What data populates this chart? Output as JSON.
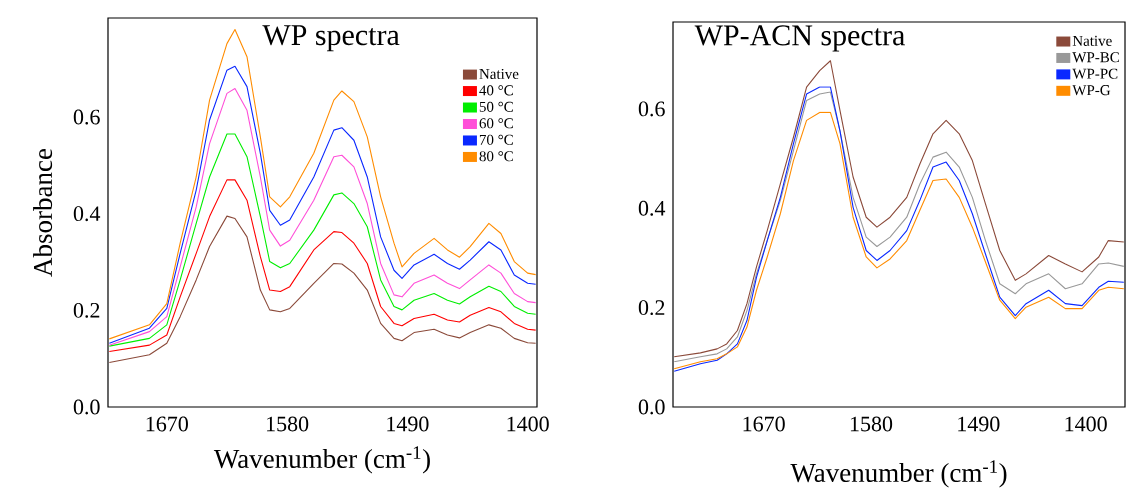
{
  "chart_data": [
    {
      "type": "line",
      "title": "WP spectra",
      "xlabel": "Wavenumber (cm$^{-1}$)",
      "ylabel": "Absorbance",
      "x": [
        1713,
        1683,
        1670,
        1660,
        1648,
        1638,
        1625,
        1619,
        1610,
        1600,
        1593,
        1585,
        1578,
        1560,
        1545,
        1539,
        1530,
        1520,
        1510,
        1500,
        1494,
        1485,
        1470,
        1460,
        1451,
        1443,
        1429,
        1420,
        1410,
        1400,
        1394
      ],
      "series": [
        {
          "name": "Native",
          "color": "#8b4a3a",
          "values": [
            0.092,
            0.108,
            0.132,
            0.187,
            0.263,
            0.332,
            0.395,
            0.39,
            0.352,
            0.242,
            0.201,
            0.197,
            0.204,
            0.256,
            0.297,
            0.296,
            0.277,
            0.242,
            0.173,
            0.142,
            0.137,
            0.154,
            0.161,
            0.149,
            0.143,
            0.154,
            0.17,
            0.163,
            0.142,
            0.133,
            0.132
          ]
        },
        {
          "name": "40 °C",
          "color": "#ff0000",
          "values": [
            0.115,
            0.128,
            0.149,
            0.228,
            0.318,
            0.394,
            0.47,
            0.47,
            0.428,
            0.311,
            0.242,
            0.239,
            0.249,
            0.325,
            0.363,
            0.361,
            0.339,
            0.297,
            0.208,
            0.173,
            0.168,
            0.183,
            0.192,
            0.18,
            0.176,
            0.19,
            0.206,
            0.197,
            0.173,
            0.161,
            0.159
          ]
        },
        {
          "name": "50 °C",
          "color": "#00ee00",
          "values": [
            0.126,
            0.142,
            0.17,
            0.263,
            0.38,
            0.476,
            0.565,
            0.565,
            0.518,
            0.394,
            0.301,
            0.288,
            0.297,
            0.366,
            0.439,
            0.443,
            0.421,
            0.373,
            0.263,
            0.208,
            0.201,
            0.221,
            0.235,
            0.221,
            0.213,
            0.228,
            0.25,
            0.239,
            0.208,
            0.194,
            0.192
          ]
        },
        {
          "name": "60 °C",
          "color": "#ff4fd8",
          "values": [
            0.128,
            0.156,
            0.187,
            0.29,
            0.414,
            0.545,
            0.649,
            0.659,
            0.614,
            0.476,
            0.366,
            0.333,
            0.345,
            0.428,
            0.518,
            0.521,
            0.497,
            0.421,
            0.297,
            0.232,
            0.228,
            0.256,
            0.273,
            0.256,
            0.245,
            0.263,
            0.294,
            0.277,
            0.235,
            0.218,
            0.216
          ]
        },
        {
          "name": "70 °C",
          "color": "#0a28ff",
          "values": [
            0.132,
            0.163,
            0.204,
            0.318,
            0.449,
            0.594,
            0.697,
            0.705,
            0.663,
            0.525,
            0.407,
            0.376,
            0.387,
            0.476,
            0.573,
            0.578,
            0.552,
            0.476,
            0.352,
            0.283,
            0.266,
            0.294,
            0.316,
            0.297,
            0.285,
            0.304,
            0.342,
            0.325,
            0.273,
            0.256,
            0.254
          ]
        },
        {
          "name": "80 °C",
          "color": "#ff8c00",
          "values": [
            0.141,
            0.17,
            0.214,
            0.339,
            0.476,
            0.635,
            0.752,
            0.781,
            0.725,
            0.559,
            0.435,
            0.414,
            0.435,
            0.525,
            0.635,
            0.654,
            0.632,
            0.559,
            0.435,
            0.339,
            0.29,
            0.318,
            0.349,
            0.325,
            0.31,
            0.332,
            0.38,
            0.359,
            0.301,
            0.277,
            0.274
          ]
        }
      ],
      "xlim": [
        1714,
        1393
      ],
      "ylim": [
        0,
        0.805
      ],
      "xticks": [
        1670,
        1580,
        1490,
        1400
      ],
      "yticks": [
        {
          "value": 0,
          "label": "0.0"
        },
        {
          "value": 0.2,
          "label": "0.2"
        },
        {
          "value": 0.4,
          "label": "0.4"
        },
        {
          "value": 0.6,
          "label": "0.6"
        }
      ],
      "legend": "top right"
    },
    {
      "type": "line",
      "title": "WP-ACN spectra",
      "xlabel": "Wavenumber (cm$^{-1}$)",
      "x": [
        1745,
        1723,
        1709,
        1701,
        1692,
        1684,
        1676,
        1667,
        1656,
        1645,
        1634,
        1623,
        1614,
        1606,
        1595,
        1584,
        1575,
        1564,
        1550,
        1539,
        1528,
        1517,
        1506,
        1495,
        1484,
        1472,
        1459,
        1450,
        1431,
        1417,
        1403,
        1389,
        1381,
        1368
      ],
      "series": [
        {
          "name": "Native",
          "color": "#8b4a3a",
          "values": [
            0.101,
            0.109,
            0.117,
            0.127,
            0.154,
            0.208,
            0.282,
            0.355,
            0.449,
            0.543,
            0.644,
            0.677,
            0.697,
            0.597,
            0.463,
            0.382,
            0.362,
            0.382,
            0.422,
            0.489,
            0.55,
            0.577,
            0.55,
            0.496,
            0.409,
            0.315,
            0.255,
            0.268,
            0.305,
            0.288,
            0.272,
            0.302,
            0.335,
            0.332
          ]
        },
        {
          "name": "WP-BC",
          "color": "#999999",
          "values": [
            0.091,
            0.101,
            0.107,
            0.117,
            0.141,
            0.194,
            0.268,
            0.335,
            0.416,
            0.516,
            0.617,
            0.63,
            0.634,
            0.556,
            0.422,
            0.342,
            0.323,
            0.342,
            0.382,
            0.449,
            0.503,
            0.513,
            0.483,
            0.422,
            0.335,
            0.248,
            0.228,
            0.248,
            0.268,
            0.238,
            0.248,
            0.288,
            0.29,
            0.283
          ]
        },
        {
          "name": "WP-PC",
          "color": "#0a28ff",
          "values": [
            0.072,
            0.087,
            0.094,
            0.107,
            0.127,
            0.174,
            0.261,
            0.335,
            0.422,
            0.53,
            0.63,
            0.644,
            0.644,
            0.556,
            0.402,
            0.315,
            0.295,
            0.315,
            0.355,
            0.416,
            0.483,
            0.493,
            0.456,
            0.389,
            0.308,
            0.221,
            0.184,
            0.208,
            0.235,
            0.208,
            0.204,
            0.241,
            0.253,
            0.251
          ]
        },
        {
          "name": "WP-G",
          "color": "#ff8c00",
          "values": [
            0.077,
            0.091,
            0.097,
            0.107,
            0.121,
            0.161,
            0.235,
            0.302,
            0.389,
            0.496,
            0.577,
            0.593,
            0.593,
            0.53,
            0.382,
            0.302,
            0.28,
            0.298,
            0.335,
            0.396,
            0.456,
            0.459,
            0.422,
            0.362,
            0.292,
            0.215,
            0.178,
            0.201,
            0.221,
            0.198,
            0.198,
            0.235,
            0.241,
            0.238
          ]
        }
      ],
      "xlim": [
        1746,
        1367
      ],
      "ylim": [
        0,
        0.775
      ],
      "xticks": [
        1670,
        1580,
        1490,
        1400
      ],
      "yticks": [
        {
          "value": 0,
          "label": "0.0"
        },
        {
          "value": 0.2,
          "label": "0.2"
        },
        {
          "value": 0.4,
          "label": "0.4"
        },
        {
          "value": 0.6,
          "label": "0.6"
        }
      ],
      "legend": "top right"
    }
  ]
}
